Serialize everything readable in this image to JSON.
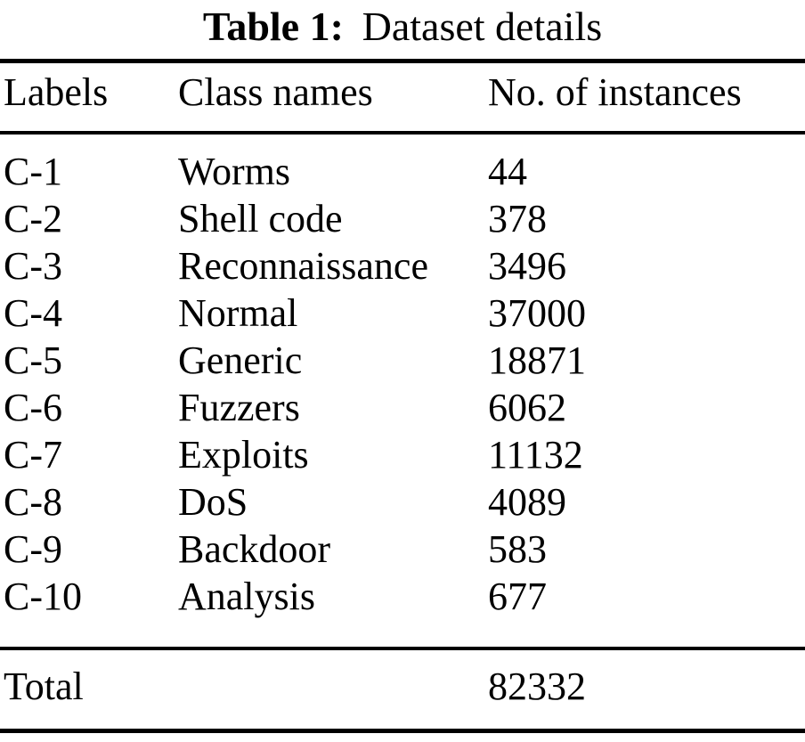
{
  "colors": {
    "text": "#000000",
    "background": "#ffffff",
    "rule": "#000000"
  },
  "caption": {
    "label": "Table 1:",
    "text": "Dataset details"
  },
  "table": {
    "columns": [
      "Labels",
      "Class names",
      "No. of instances"
    ],
    "rows": [
      {
        "label": "C-1",
        "class_name": "Worms",
        "instances": "44"
      },
      {
        "label": "C-2",
        "class_name": "Shell code",
        "instances": "378"
      },
      {
        "label": "C-3",
        "class_name": "Reconnaissance",
        "instances": "3496"
      },
      {
        "label": "C-4",
        "class_name": "Normal",
        "instances": "37000"
      },
      {
        "label": "C-5",
        "class_name": "Generic",
        "instances": "18871"
      },
      {
        "label": "C-6",
        "class_name": "Fuzzers",
        "instances": "6062"
      },
      {
        "label": "C-7",
        "class_name": "Exploits",
        "instances": "11132"
      },
      {
        "label": "C-8",
        "class_name": "DoS",
        "instances": "4089"
      },
      {
        "label": "C-9",
        "class_name": "Backdoor",
        "instances": "583"
      },
      {
        "label": "C-10",
        "class_name": "Analysis",
        "instances": "677"
      }
    ],
    "total": {
      "label": "Total",
      "instances": "82332"
    }
  }
}
